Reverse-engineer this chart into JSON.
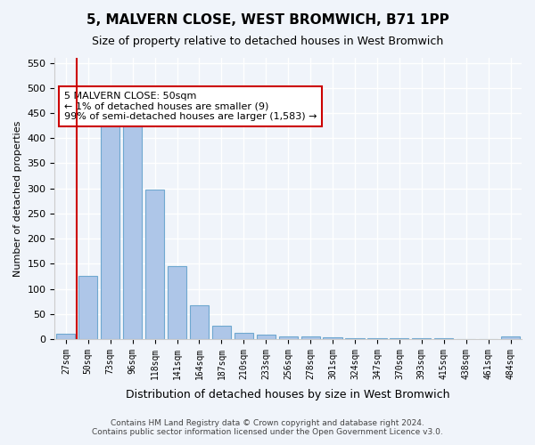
{
  "title": "5, MALVERN CLOSE, WEST BROMWICH, B71 1PP",
  "subtitle": "Size of property relative to detached houses in West Bromwich",
  "xlabel": "Distribution of detached houses by size in West Bromwich",
  "ylabel": "Number of detached properties",
  "categories": [
    "27sqm",
    "50sqm",
    "73sqm",
    "96sqm",
    "118sqm",
    "141sqm",
    "164sqm",
    "187sqm",
    "210sqm",
    "233sqm",
    "256sqm",
    "278sqm",
    "301sqm",
    "324sqm",
    "347sqm",
    "370sqm",
    "393sqm",
    "415sqm",
    "438sqm",
    "461sqm",
    "484sqm"
  ],
  "values": [
    10,
    125,
    447,
    437,
    297,
    145,
    68,
    27,
    13,
    9,
    6,
    5,
    3,
    2,
    1,
    1,
    1,
    1,
    0,
    0,
    6
  ],
  "bar_color": "#aec6e8",
  "bar_edge_color": "#6fa8d0",
  "highlight_index": 1,
  "highlight_line_color": "#cc0000",
  "ylim": [
    0,
    560
  ],
  "yticks": [
    0,
    50,
    100,
    150,
    200,
    250,
    300,
    350,
    400,
    450,
    500,
    550
  ],
  "annotation_text": "5 MALVERN CLOSE: 50sqm\n← 1% of detached houses are smaller (9)\n99% of semi-detached houses are larger (1,583) →",
  "annotation_box_color": "#ffffff",
  "annotation_box_edge_color": "#cc0000",
  "footer_line1": "Contains HM Land Registry data © Crown copyright and database right 2024.",
  "footer_line2": "Contains public sector information licensed under the Open Government Licence v3.0.",
  "background_color": "#f0f4fa",
  "grid_color": "#ffffff"
}
